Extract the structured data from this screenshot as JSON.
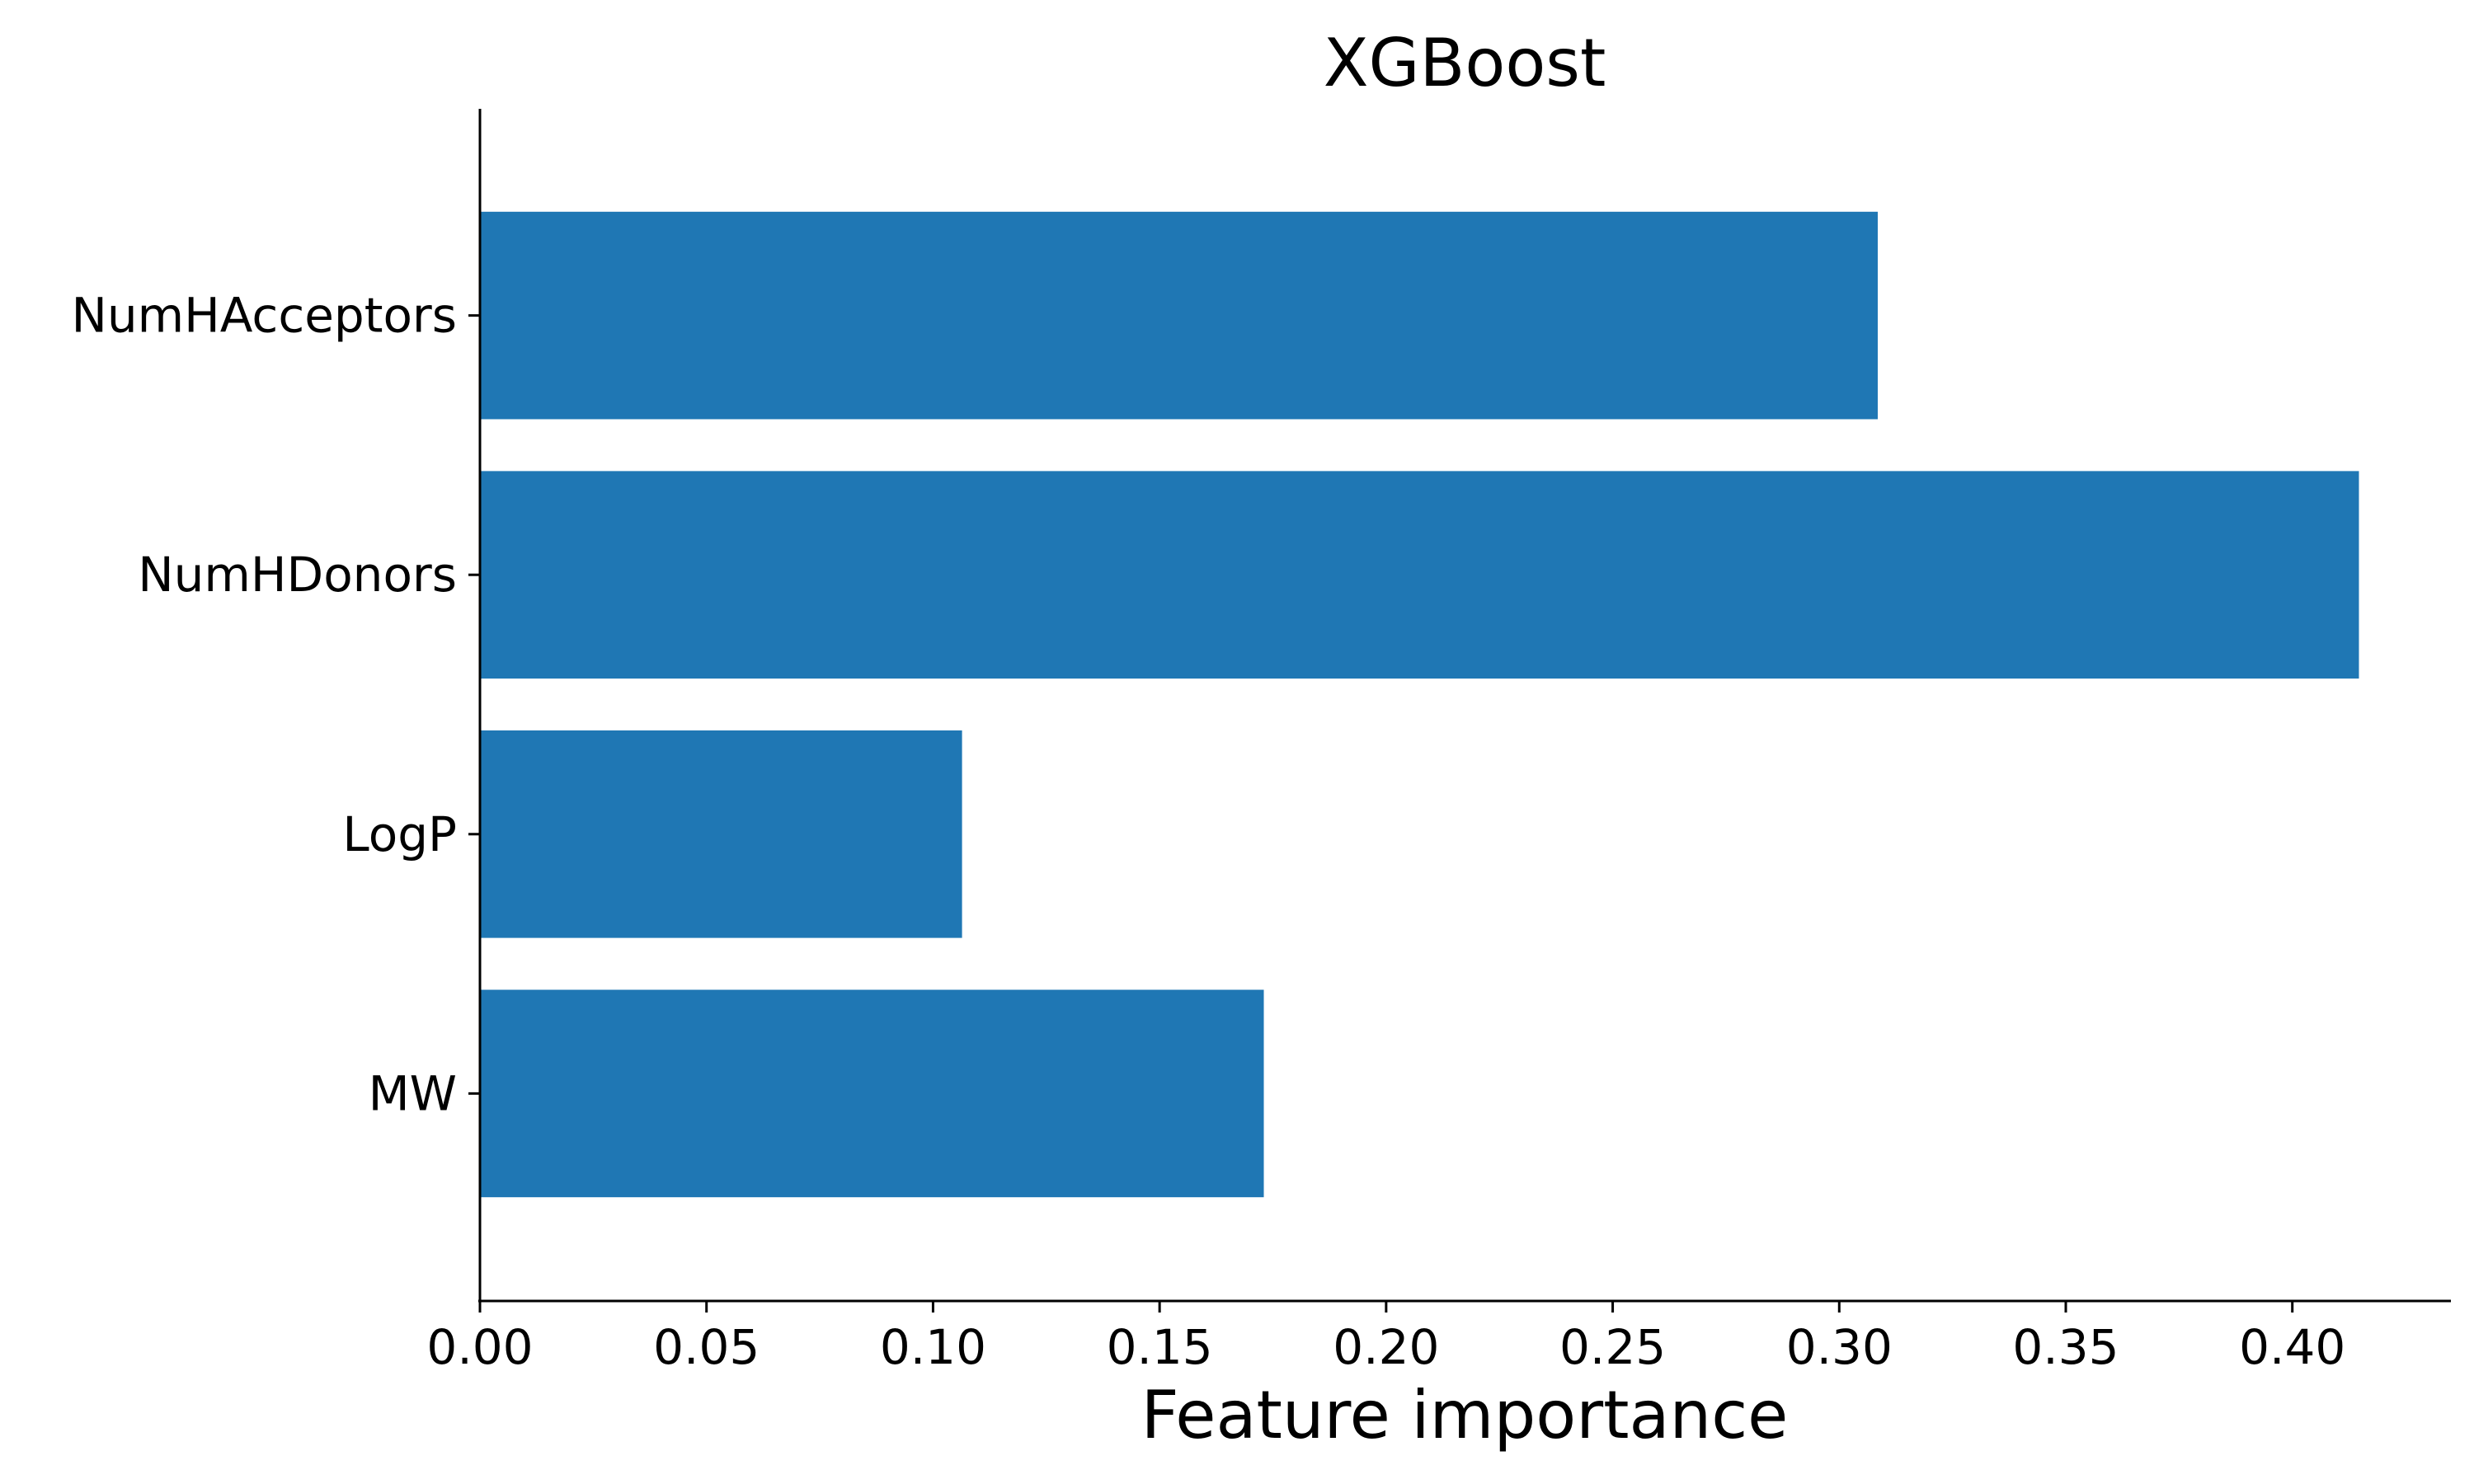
{
  "chart_data": {
    "type": "bar",
    "orientation": "horizontal",
    "title": "XGBoost",
    "xlabel": "Feature importance",
    "ylabel": "",
    "categories": [
      "NumHAcceptors",
      "NumHDonors",
      "LogP",
      "MW"
    ],
    "values": [
      0.3085,
      0.4147,
      0.1064,
      0.173
    ],
    "xlim": [
      0.0,
      0.435
    ],
    "xticks": [
      0.0,
      0.05,
      0.1,
      0.15,
      0.2,
      0.25,
      0.3,
      0.35,
      0.4
    ],
    "xtick_labels": [
      "0.00",
      "0.05",
      "0.10",
      "0.15",
      "0.20",
      "0.25",
      "0.30",
      "0.35",
      "0.40"
    ],
    "grid": false,
    "legend": "none",
    "bar_color": "#1f77b4"
  }
}
